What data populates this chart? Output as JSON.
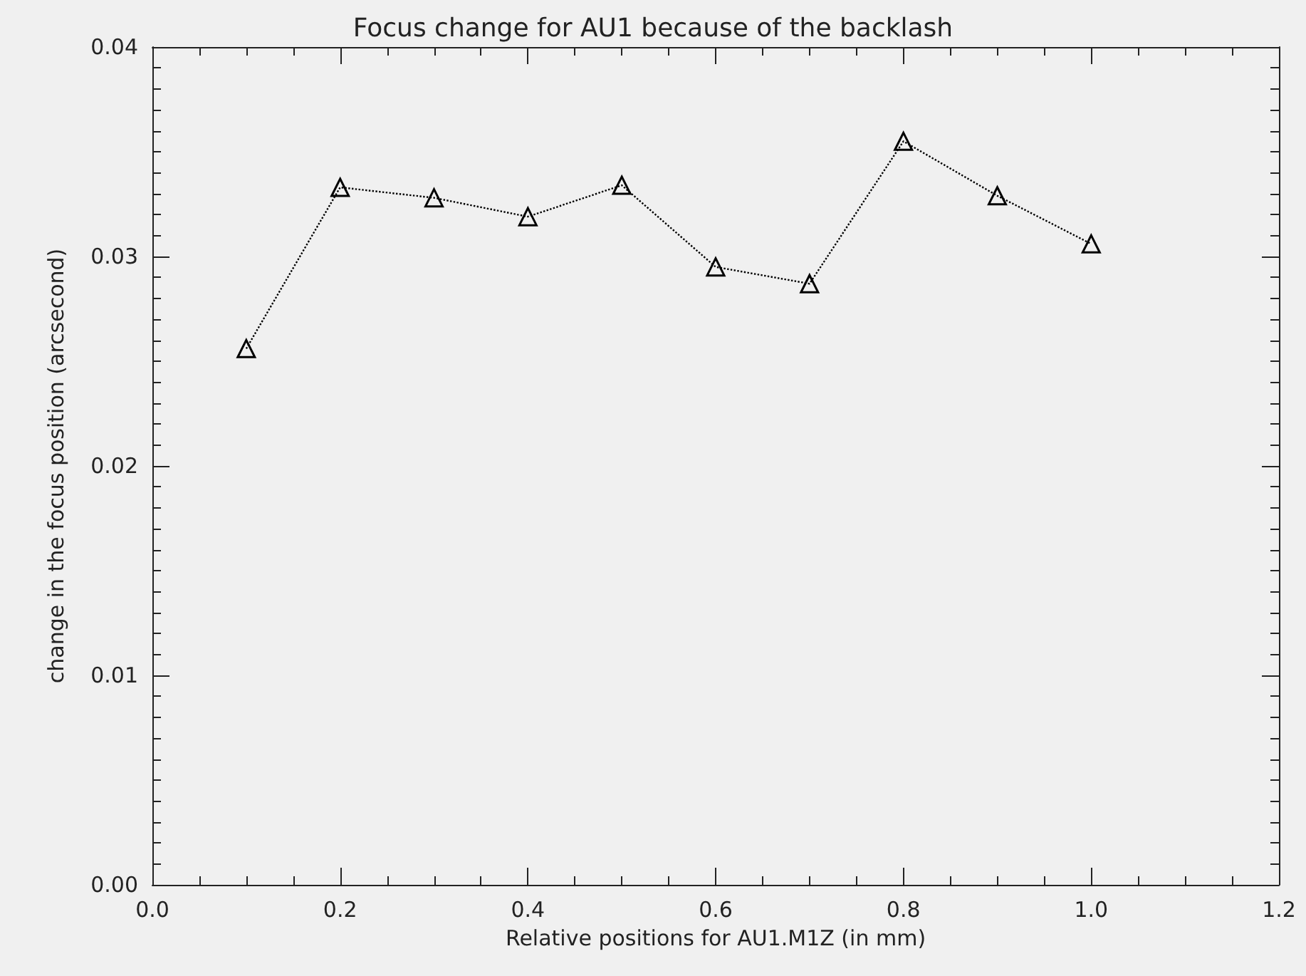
{
  "chart_data": {
    "type": "line",
    "title": "Focus change for AU1 because of the backlash",
    "xlabel": "Relative positions for AU1.M1Z (in mm)",
    "ylabel": "change in the focus position (arcsecond)",
    "x": [
      0.1,
      0.2,
      0.3,
      0.4,
      0.5,
      0.6,
      0.7,
      0.8,
      0.9,
      1.0
    ],
    "series": [
      {
        "color": "#000000",
        "values": [
          0.0256,
          0.0333,
          0.0328,
          0.0319,
          0.0334,
          0.0295,
          0.0287,
          0.0355,
          0.0329,
          0.0306
        ]
      }
    ],
    "xlim": [
      0,
      1.2
    ],
    "xticks": [
      {
        "value": 0,
        "label": "0.0"
      },
      0.2,
      0.4,
      0.6,
      0.8,
      {
        "value": 1,
        "label": "1.0"
      },
      1.2
    ],
    "ylim": [
      0,
      0.04
    ],
    "yticks": [
      {
        "value": 0,
        "label": "0.00"
      },
      0.01,
      0.02,
      0.03,
      0.04
    ],
    "grid": false,
    "marker": "triangle",
    "line_style": "dotted"
  }
}
